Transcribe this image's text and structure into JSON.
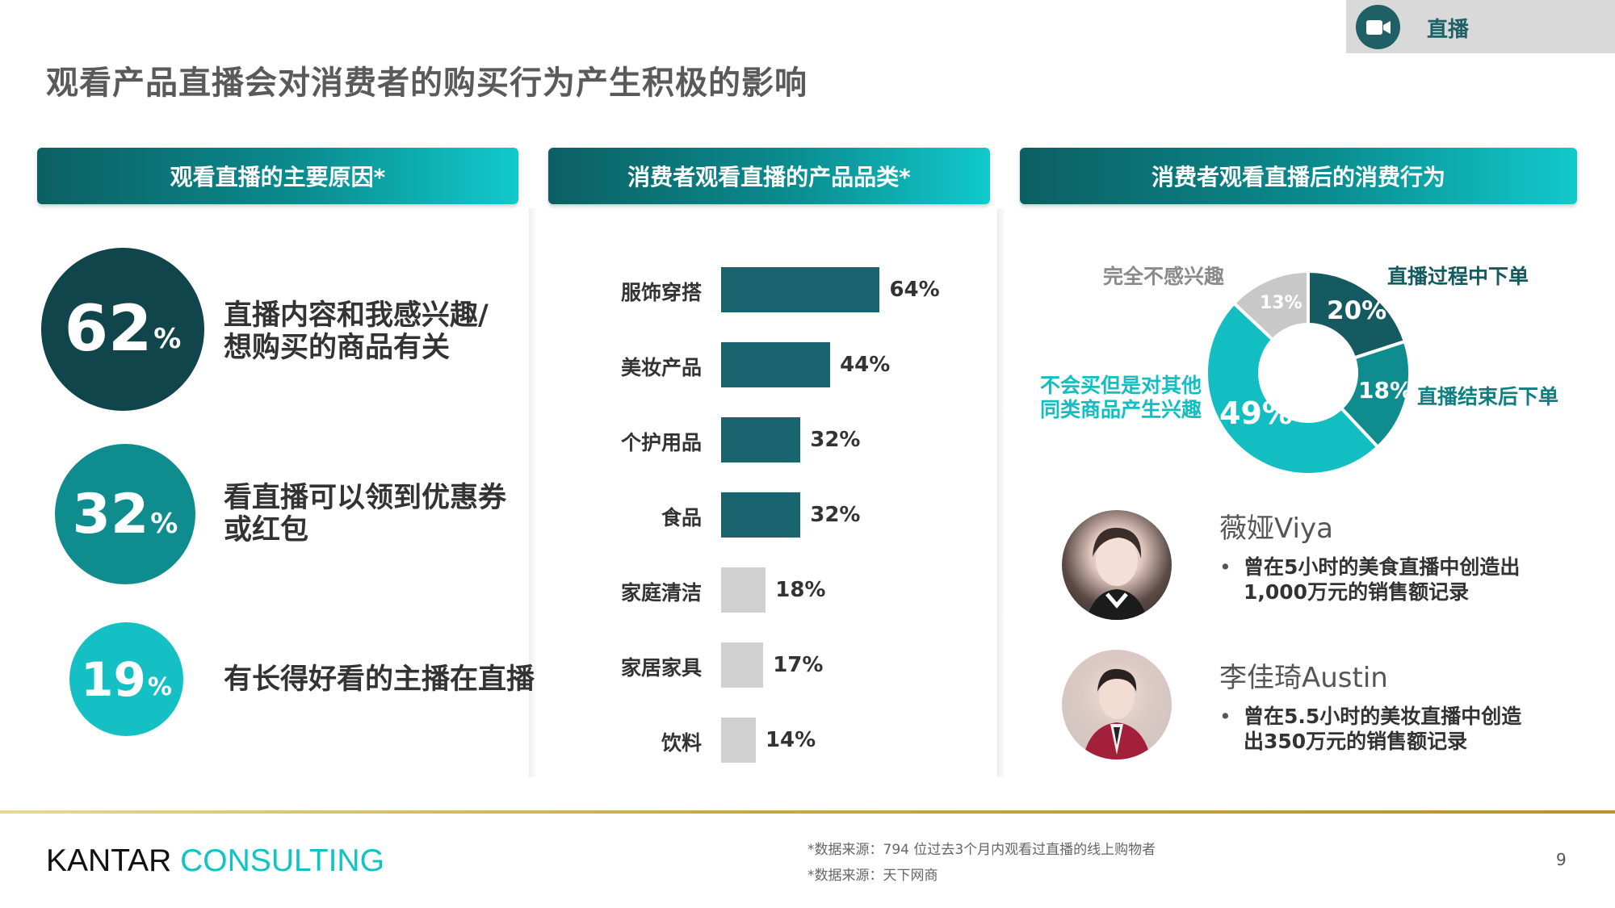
{
  "header": {
    "tag_label": "直播",
    "tag_icon": "video-camera-icon",
    "title": "观看产品直播会对消费者的购买行为产生积极的影响"
  },
  "panels": {
    "reasons_title": "观看直播的主要原因*",
    "categories_title": "消费者观看直播的产品品类*",
    "behavior_title": "消费者观看直播后的消费行为"
  },
  "reasons": [
    {
      "value": "62",
      "unit": "%",
      "line1": "直播内容和我感兴趣/",
      "line2": "想购买的商品有关",
      "color": "#10464b"
    },
    {
      "value": "32",
      "unit": "%",
      "line1": "看直播可以领到优惠券",
      "line2": "或红包",
      "color": "#0f8c8e"
    },
    {
      "value": "19",
      "unit": "%",
      "line1": "有长得好看的主播在直播",
      "line2": "",
      "color": "#14c0c3"
    }
  ],
  "chart_data": [
    {
      "type": "bar",
      "orientation": "horizontal",
      "title": "消费者观看直播的产品品类*",
      "categories": [
        "服饰穿搭",
        "美妆产品",
        "个护用品",
        "食品",
        "家庭清洁",
        "家居家具",
        "饮料"
      ],
      "values": [
        64,
        44,
        32,
        32,
        18,
        17,
        14
      ],
      "labels": [
        "64%",
        "44%",
        "32%",
        "32%",
        "18%",
        "17%",
        "14%"
      ],
      "unit": "%",
      "highlight_color": "#1a6470",
      "muted_color": "#d0d0d0",
      "highlight_count": 4
    },
    {
      "type": "pie",
      "variant": "donut",
      "title": "消费者观看直播后的消费行为",
      "slices": [
        {
          "label": "直播过程中下单",
          "value": 20,
          "text": "20%",
          "color": "#155a60"
        },
        {
          "label": "直播结束后下单",
          "value": 18,
          "text": "18%",
          "color": "#0f8c8e"
        },
        {
          "label": "不会买但是对其他同类商品产生兴趣",
          "value": 49,
          "text": "49%",
          "color": "#12bec1"
        },
        {
          "label": "完全不感兴趣",
          "value": 13,
          "text": "13%",
          "color": "#c8c8c8"
        }
      ]
    }
  ],
  "donut_labels": {
    "during": "直播过程中下单",
    "after": "直播结束后下单",
    "interest_line1": "不会买但是对其他",
    "interest_line2": "同类商品产生兴趣",
    "none": "完全不感兴趣"
  },
  "influencers": [
    {
      "name": "薇娅Viya",
      "bullet_line1": "曾在5小时的美食直播中创造出",
      "bullet_line2": "1,000万元的销售额记录"
    },
    {
      "name": "李佳琦Austin",
      "bullet_line1": "曾在5.5小时的美妆直播中创造",
      "bullet_line2": "出350万元的销售额记录"
    }
  ],
  "footer": {
    "brand_part1": "KANTAR",
    "brand_part2": "CONSULTING",
    "source1": "*数据来源：794 位过去3个月内观看过直播的线上购物者",
    "source2": "*数据来源：天下网商",
    "page_number": "9"
  }
}
